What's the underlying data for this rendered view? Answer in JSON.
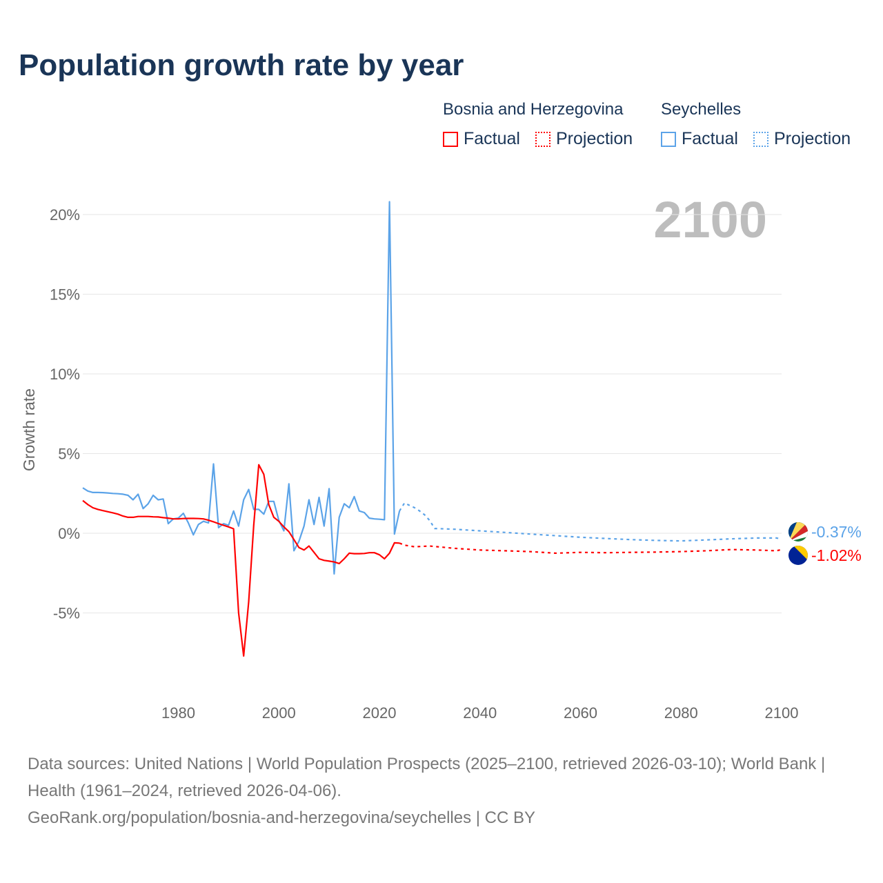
{
  "title": "Population growth rate by year",
  "watermark_year": "2100",
  "legend": {
    "groups": [
      {
        "name": "Bosnia and Herzegovina",
        "factual": "Factual",
        "projection": "Projection",
        "color": "#ff0000"
      },
      {
        "name": "Seychelles",
        "factual": "Factual",
        "projection": "Projection",
        "color": "#5ba3e8"
      }
    ]
  },
  "footer": {
    "sources": "Data sources: United Nations | World Population Prospects (2025–2100, retrieved 2026-03-10); World Bank | Health (1961–2024, retrieved 2026-04-06).",
    "url": "GeoRank.org/population/bosnia-and-herzegovina/seychelles | CC BY"
  },
  "chart_data": {
    "type": "line",
    "title": "Population growth rate by year",
    "xlabel": "",
    "ylabel": "Growth rate",
    "xlim": [
      1961,
      2100
    ],
    "ylim": [
      -9.7,
      22
    ],
    "x_ticks": [
      1980,
      2000,
      2020,
      2040,
      2060,
      2080,
      2100
    ],
    "y_ticks": [
      -5,
      0,
      5,
      10,
      15,
      20
    ],
    "y_tick_labels": [
      "-5%",
      "0%",
      "5%",
      "10%",
      "15%",
      "20%"
    ],
    "grid": true,
    "legend_position": "top-right",
    "series": [
      {
        "name": "Seychelles",
        "kind": "factual",
        "color": "#5ba3e8",
        "start_year": 1961,
        "values": [
          2.85,
          2.65,
          2.56,
          2.56,
          2.55,
          2.53,
          2.5,
          2.48,
          2.45,
          2.38,
          2.1,
          2.45,
          1.55,
          1.85,
          2.38,
          2.1,
          2.15,
          0.6,
          0.9,
          0.95,
          1.25,
          0.65,
          -0.1,
          0.55,
          0.75,
          0.65,
          4.35,
          0.35,
          0.6,
          0.5,
          1.4,
          0.45,
          2.1,
          2.75,
          1.5,
          1.5,
          1.2,
          2.0,
          2.0,
          0.8,
          0.15,
          3.1,
          -1.1,
          -0.5,
          0.45,
          2.1,
          0.55,
          2.25,
          0.45,
          2.8,
          -2.55,
          1.0,
          1.85,
          1.6,
          2.3,
          1.4,
          1.3,
          0.95,
          0.9,
          0.88,
          0.85,
          20.8,
          -0.05,
          1.4
        ]
      },
      {
        "name": "Seychelles",
        "kind": "projection",
        "color": "#5ba3e8",
        "x": [
          2024,
          2025,
          2026,
          2027,
          2028,
          2029,
          2030,
          2031,
          2035,
          2040,
          2045,
          2050,
          2055,
          2060,
          2065,
          2070,
          2075,
          2080,
          2085,
          2090,
          2095,
          2099,
          2100
        ],
        "values": [
          1.4,
          1.9,
          1.75,
          1.6,
          1.4,
          1.15,
          0.8,
          0.3,
          0.25,
          0.15,
          0.05,
          -0.05,
          -0.15,
          -0.25,
          -0.33,
          -0.4,
          -0.45,
          -0.48,
          -0.42,
          -0.35,
          -0.3,
          -0.3,
          -0.37
        ]
      },
      {
        "name": "Bosnia and Herzegovina",
        "kind": "factual",
        "color": "#ff0000",
        "start_year": 1961,
        "values": [
          2.05,
          1.8,
          1.6,
          1.5,
          1.42,
          1.35,
          1.28,
          1.2,
          1.08,
          1.0,
          1.0,
          1.05,
          1.05,
          1.05,
          1.03,
          1.02,
          0.98,
          0.95,
          0.9,
          0.9,
          0.92,
          0.93,
          0.93,
          0.92,
          0.9,
          0.82,
          0.72,
          0.6,
          0.5,
          0.4,
          0.28,
          -5.0,
          -7.7,
          -4.3,
          0.5,
          4.3,
          3.7,
          1.8,
          1.0,
          0.75,
          0.4,
          0.1,
          -0.4,
          -0.9,
          -1.05,
          -0.8,
          -1.2,
          -1.6,
          -1.7,
          -1.75,
          -1.8,
          -1.9,
          -1.6,
          -1.25,
          -1.28,
          -1.28,
          -1.27,
          -1.22,
          -1.22,
          -1.35,
          -1.6,
          -1.25,
          -0.6,
          -0.62
        ]
      },
      {
        "name": "Bosnia and Herzegovina",
        "kind": "projection",
        "color": "#ff0000",
        "x": [
          2024,
          2025,
          2027,
          2030,
          2035,
          2040,
          2045,
          2050,
          2055,
          2060,
          2065,
          2070,
          2075,
          2080,
          2085,
          2090,
          2095,
          2099,
          2100
        ],
        "values": [
          -0.62,
          -0.75,
          -0.85,
          -0.8,
          -0.95,
          -1.05,
          -1.1,
          -1.15,
          -1.25,
          -1.2,
          -1.22,
          -1.2,
          -1.18,
          -1.15,
          -1.1,
          -1.02,
          -1.05,
          -1.1,
          -1.02
        ]
      }
    ],
    "end_labels": [
      {
        "name": "Seychelles",
        "text": "-0.37%",
        "color": "#5ba3e8"
      },
      {
        "name": "Bosnia and Herzegovina",
        "text": "-1.02%",
        "color": "#ff0000"
      }
    ]
  }
}
